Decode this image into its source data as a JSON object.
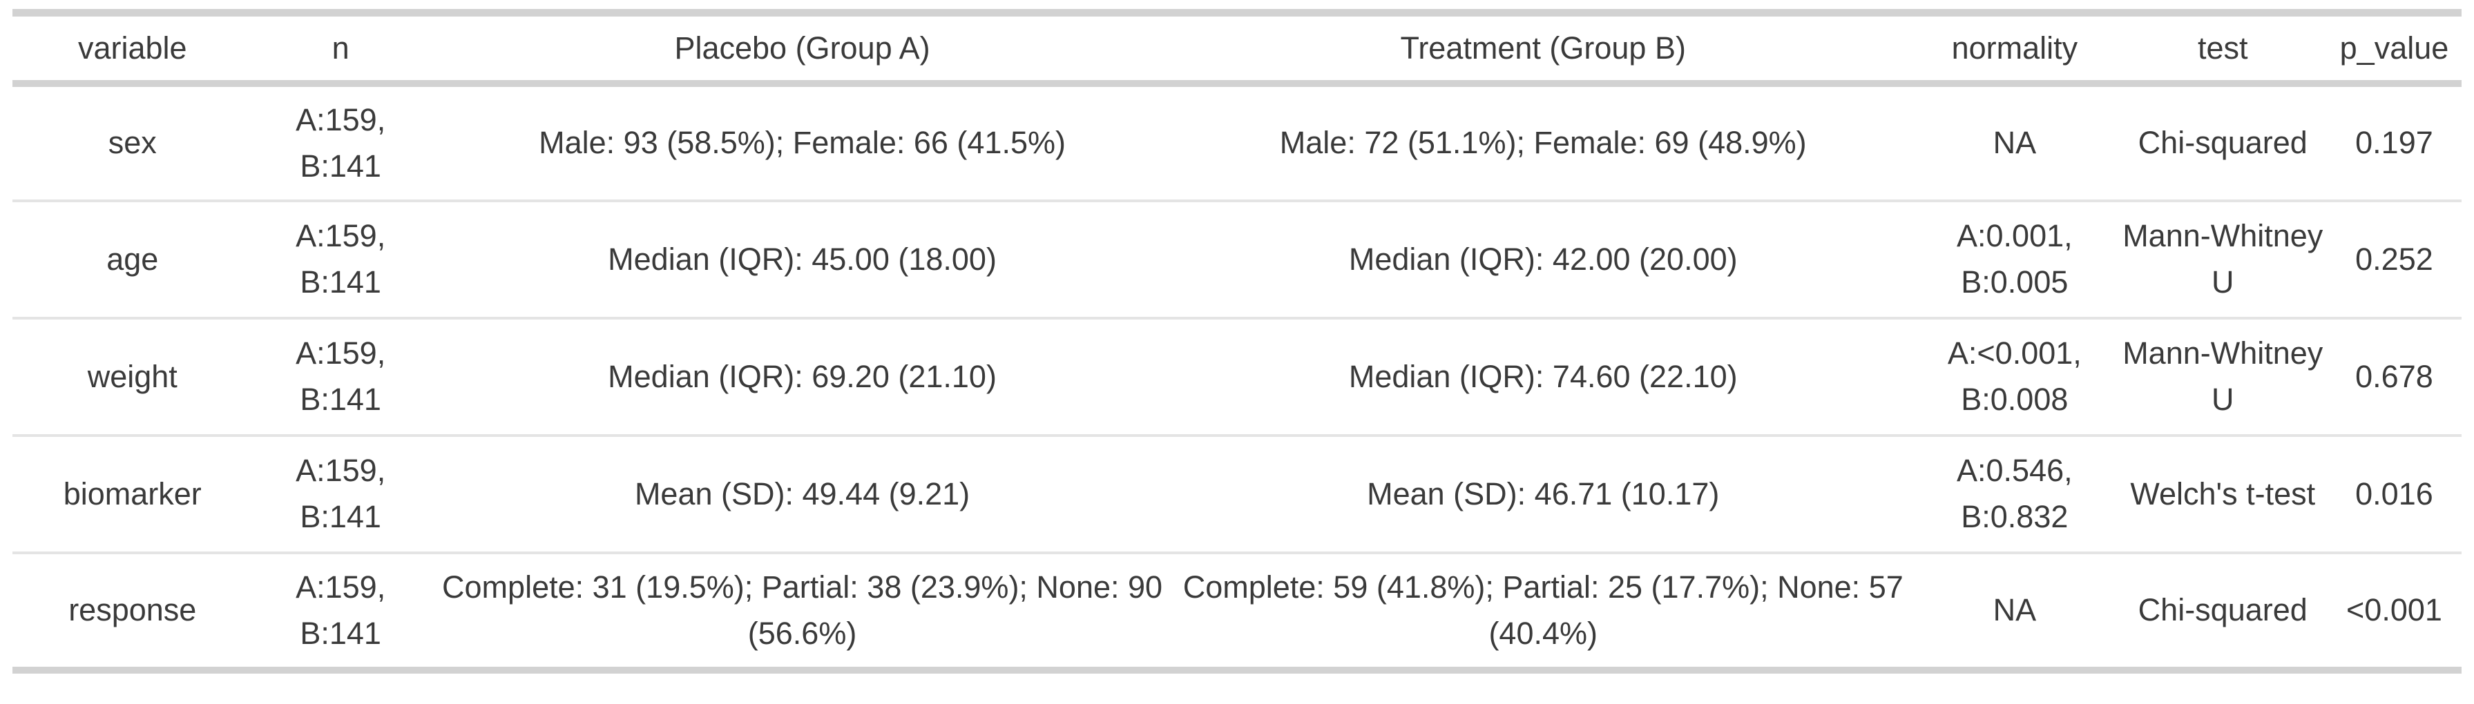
{
  "chart_data": {
    "type": "table",
    "columns": [
      "variable",
      "n",
      "Placebo (Group A)",
      "Treatment (Group B)",
      "normality",
      "test",
      "p_value"
    ],
    "rows": [
      {
        "variable": "sex",
        "n": "A:159, B:141",
        "placebo": "Male: 93 (58.5%); Female: 66 (41.5%)",
        "treatment": "Male: 72 (51.1%); Female: 69 (48.9%)",
        "normality": "NA",
        "test": "Chi-squared",
        "p_value": "0.197"
      },
      {
        "variable": "age",
        "n": "A:159, B:141",
        "placebo": "Median (IQR): 45.00 (18.00)",
        "treatment": "Median (IQR): 42.00 (20.00)",
        "normality": "A:0.001, B:0.005",
        "test": "Mann-Whitney U",
        "p_value": "0.252"
      },
      {
        "variable": "weight",
        "n": "A:159, B:141",
        "placebo": "Median (IQR): 69.20 (21.10)",
        "treatment": "Median (IQR): 74.60 (22.10)",
        "normality": "A:<0.001, B:0.008",
        "test": "Mann-Whitney U",
        "p_value": "0.678"
      },
      {
        "variable": "biomarker",
        "n": "A:159, B:141",
        "placebo": "Mean (SD): 49.44 (9.21)",
        "treatment": "Mean (SD): 46.71 (10.17)",
        "normality": "A:0.546, B:0.832",
        "test": "Welch's t-test",
        "p_value": "0.016"
      },
      {
        "variable": "response",
        "n": "A:159, B:141",
        "placebo": "Complete: 31 (19.5%); Partial: 38 (23.9%); None: 90 (56.6%)",
        "treatment": "Complete: 59 (41.8%); Partial: 25 (17.7%); None: 57 (40.4%)",
        "normality": "NA",
        "test": "Chi-squared",
        "p_value": "<0.001"
      }
    ],
    "layout": {
      "grid": "horizontal-rules-only",
      "header_rule_color": "#d2d2d2",
      "row_rule_color": "#e4e4e4"
    }
  },
  "colors": {
    "text": "#3a3a3a",
    "border_heavy": "#d2d2d2",
    "border_light": "#e4e4e4",
    "background": "#ffffff"
  }
}
